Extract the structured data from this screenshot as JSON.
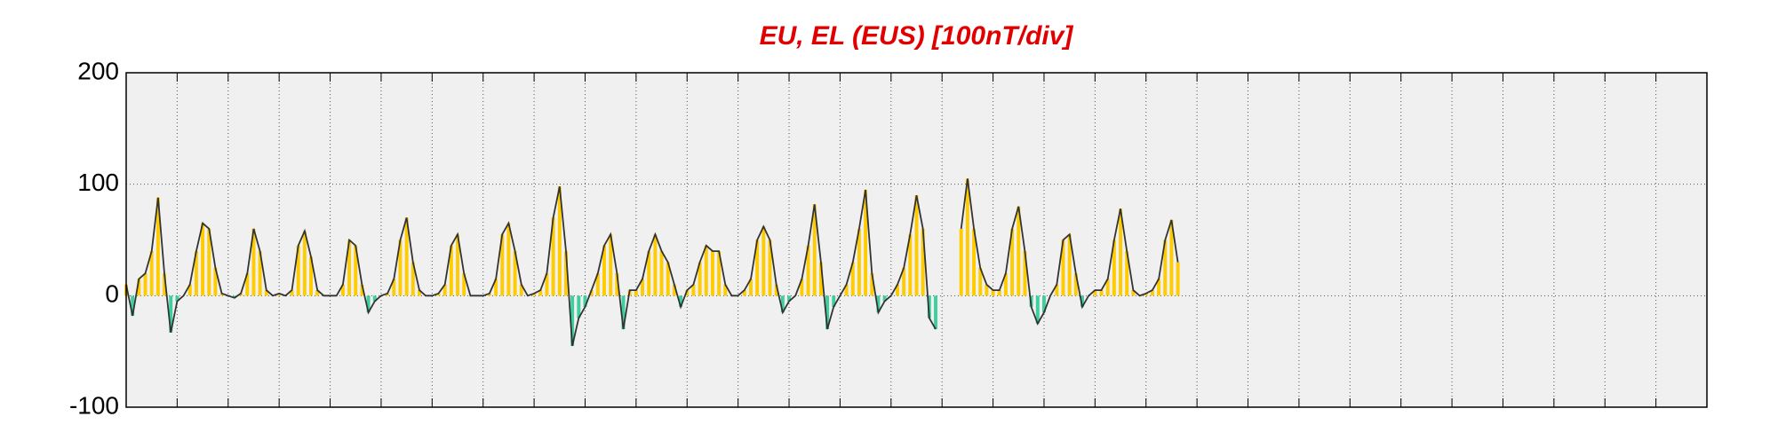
{
  "chart_data": {
    "type": "area-bars",
    "title": "EU, EL (EUS)  [100nT/div]",
    "xlim": [
      0,
      31
    ],
    "xticks": [
      1,
      2,
      3,
      4,
      5,
      6,
      7,
      8,
      9,
      10,
      11,
      12,
      13,
      14,
      15,
      16,
      17,
      18,
      19,
      20,
      21,
      22,
      23,
      24,
      25,
      26,
      27,
      28,
      29,
      30
    ],
    "xtick_labels": false,
    "ylim": [
      -100,
      200
    ],
    "yticks": [
      -100,
      0,
      100,
      200
    ],
    "grid": true,
    "positive_color": "#ffcc00",
    "negative_color": "#3fcf9f",
    "line_color": "#333333",
    "x": [
      0,
      0.125,
      0.25,
      0.375,
      0.5,
      0.625,
      0.75,
      0.875,
      1,
      1.125,
      1.25,
      1.375,
      1.5,
      1.625,
      1.75,
      1.875,
      2,
      2.125,
      2.25,
      2.375,
      2.5,
      2.625,
      2.75,
      2.875,
      3,
      3.125,
      3.25,
      3.375,
      3.5,
      3.625,
      3.75,
      3.875,
      4,
      4.125,
      4.25,
      4.375,
      4.5,
      4.625,
      4.75,
      4.875,
      5,
      5.125,
      5.25,
      5.375,
      5.5,
      5.625,
      5.75,
      5.875,
      6,
      6.125,
      6.25,
      6.375,
      6.5,
      6.625,
      6.75,
      6.875,
      7,
      7.125,
      7.25,
      7.375,
      7.5,
      7.625,
      7.75,
      7.875,
      8,
      8.125,
      8.25,
      8.375,
      8.5,
      8.625,
      8.75,
      8.875,
      9,
      9.125,
      9.25,
      9.375,
      9.5,
      9.625,
      9.75,
      9.875,
      10,
      10.125,
      10.25,
      10.375,
      10.5,
      10.625,
      10.75,
      10.875,
      11,
      11.125,
      11.25,
      11.375,
      11.5,
      11.625,
      11.75,
      11.875,
      12,
      12.125,
      12.25,
      12.375,
      12.5,
      12.625,
      12.75,
      12.875,
      13,
      13.125,
      13.25,
      13.375,
      13.5,
      13.625,
      13.75,
      13.875,
      14,
      14.125,
      14.25,
      14.375,
      14.5,
      14.625,
      14.75,
      14.875,
      15,
      15.125,
      15.25,
      15.375,
      15.5,
      15.625,
      15.75,
      15.875,
      16,
      16.125,
      16.25,
      16.375,
      16.5,
      16.625,
      16.75,
      16.875,
      17,
      17.125,
      17.25,
      17.375,
      17.5,
      17.625,
      17.75,
      17.875,
      18,
      18.125,
      18.25,
      18.375,
      18.5,
      18.625,
      18.75,
      18.875,
      19,
      19.125,
      19.25,
      19.375,
      19.5,
      19.625,
      19.75,
      19.875,
      20,
      20.125,
      20.25,
      20.375,
      20.5,
      20.625
    ],
    "values": [
      10,
      -18,
      15,
      20,
      40,
      88,
      20,
      -33,
      -5,
      0,
      10,
      40,
      65,
      60,
      25,
      2,
      0,
      -2,
      2,
      20,
      60,
      40,
      5,
      0,
      2,
      0,
      5,
      45,
      58,
      35,
      5,
      0,
      0,
      0,
      10,
      50,
      45,
      10,
      -15,
      -5,
      0,
      2,
      15,
      50,
      70,
      30,
      5,
      0,
      0,
      2,
      10,
      45,
      55,
      20,
      0,
      0,
      0,
      2,
      15,
      55,
      65,
      40,
      10,
      0,
      2,
      5,
      20,
      70,
      98,
      40,
      -45,
      -20,
      -10,
      5,
      20,
      45,
      55,
      20,
      -30,
      5,
      5,
      15,
      40,
      55,
      40,
      30,
      10,
      -10,
      5,
      10,
      30,
      45,
      40,
      40,
      10,
      0,
      0,
      5,
      15,
      50,
      62,
      50,
      10,
      -15,
      -5,
      0,
      15,
      45,
      82,
      30,
      -30,
      -10,
      0,
      10,
      30,
      60,
      95,
      20,
      -15,
      -5,
      0,
      10,
      25,
      55,
      90,
      60,
      -20,
      -30,
      null,
      null,
      null,
      60,
      105,
      60,
      25,
      10,
      5,
      5,
      20,
      60,
      80,
      40,
      -10,
      -25,
      -15,
      0,
      10,
      50,
      55,
      20,
      -10,
      0,
      5,
      5,
      15,
      50,
      78,
      40,
      5,
      0,
      2,
      5,
      15,
      50,
      68,
      30
    ]
  }
}
